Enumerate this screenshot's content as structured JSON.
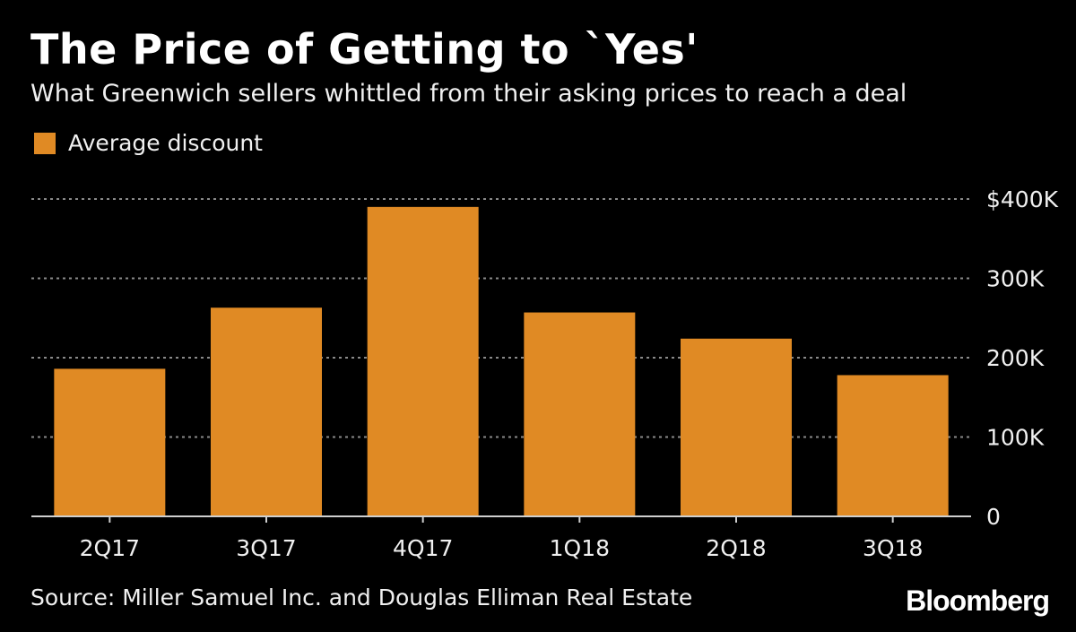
{
  "title": "The Price of Getting to `Yes'",
  "subtitle": "What Greenwich sellers whittled from their asking prices to reach a deal",
  "legend": {
    "label": "Average discount",
    "color": "#e08a24"
  },
  "source": "Source: Miller Samuel Inc. and Douglas Elliman Real Estate",
  "brand": "Bloomberg",
  "chart_data": {
    "type": "bar",
    "title": "The Price of Getting to `Yes'",
    "subtitle": "What Greenwich sellers whittled from their asking prices to reach a deal",
    "categories": [
      "2Q17",
      "3Q17",
      "4Q17",
      "1Q18",
      "2Q18",
      "3Q18"
    ],
    "series": [
      {
        "name": "Average discount",
        "values": [
          186000,
          263000,
          390000,
          257000,
          224000,
          178000
        ],
        "color": "#e08a24"
      }
    ],
    "ylim": [
      0,
      400000
    ],
    "yticks": [
      0,
      100000,
      200000,
      300000,
      400000
    ],
    "ytick_labels": [
      "0",
      "100K",
      "200K",
      "300K",
      "$400K"
    ],
    "xlabel": "",
    "ylabel": "",
    "grid": true,
    "legend_position": "top-left"
  }
}
